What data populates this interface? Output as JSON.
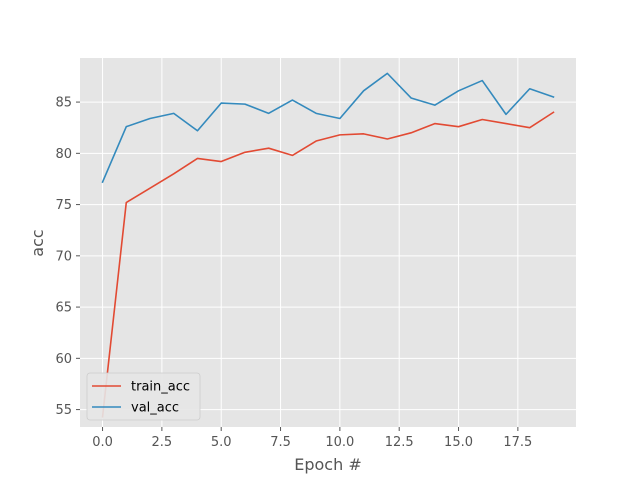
{
  "chart_data": {
    "type": "line",
    "xlabel": "Epoch #",
    "ylabel": "acc",
    "xlim": [
      -0.95,
      19.95
    ],
    "ylim": [
      53.3,
      89.3
    ],
    "xticks": [
      0.0,
      2.5,
      5.0,
      7.5,
      10.0,
      12.5,
      15.0,
      17.5
    ],
    "xtick_labels": [
      "0.0",
      "2.5",
      "5.0",
      "7.5",
      "10.0",
      "12.5",
      "15.0",
      "17.5"
    ],
    "yticks": [
      55,
      60,
      65,
      70,
      75,
      80,
      85
    ],
    "ytick_labels": [
      "55",
      "60",
      "65",
      "70",
      "75",
      "80",
      "85"
    ],
    "grid": true,
    "legend_position": "lower-left",
    "x": [
      0,
      1,
      2,
      3,
      4,
      5,
      6,
      7,
      8,
      9,
      10,
      11,
      12,
      13,
      14,
      15,
      16,
      17,
      18,
      19
    ],
    "series": [
      {
        "name": "train_acc",
        "color": "#E24A33",
        "values": [
          54.3,
          75.2,
          76.6,
          78.0,
          79.5,
          79.2,
          80.1,
          80.5,
          79.8,
          81.2,
          81.8,
          81.9,
          81.4,
          82.0,
          82.9,
          82.6,
          83.3,
          82.9,
          82.5,
          84.0
        ]
      },
      {
        "name": "val_acc",
        "color": "#348ABD",
        "values": [
          77.2,
          82.6,
          83.4,
          83.9,
          82.2,
          84.9,
          84.8,
          83.9,
          85.2,
          83.9,
          83.4,
          86.1,
          87.8,
          85.4,
          84.7,
          86.1,
          87.1,
          83.8,
          86.3,
          85.5
        ]
      }
    ]
  }
}
